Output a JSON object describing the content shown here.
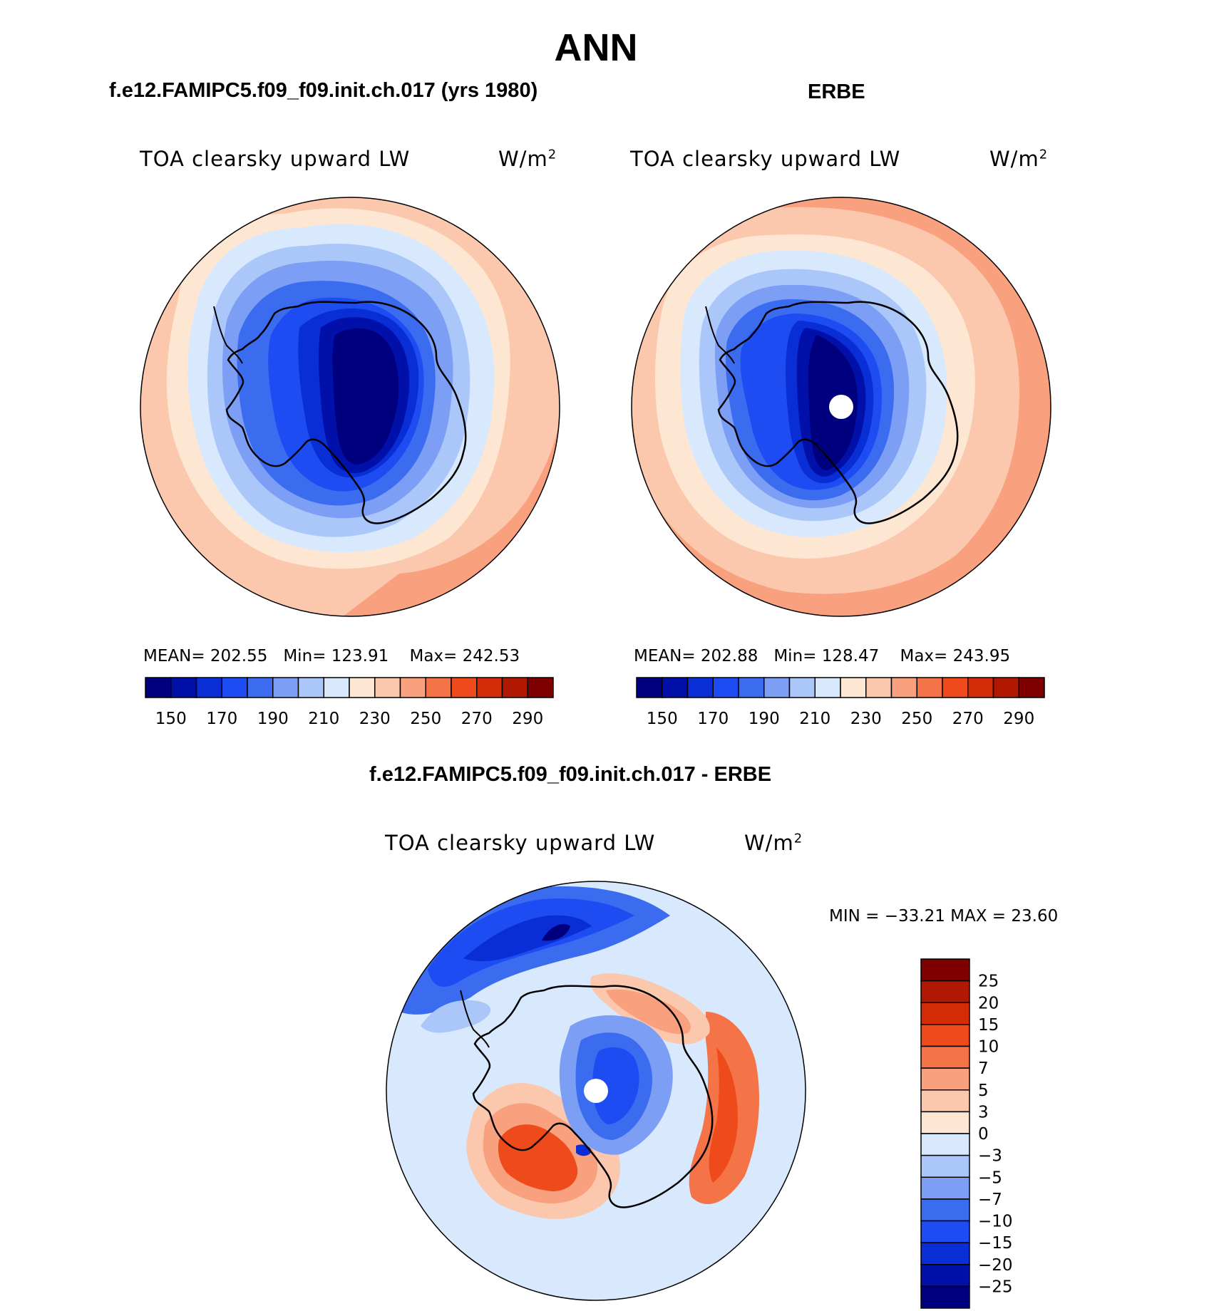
{
  "season": "ANN",
  "panels": {
    "model": {
      "title": "f.e12.FAMIPC5.f09_f09.init.ch.017 (yrs 1980)",
      "variable": "TOA clearsky upward LW",
      "units": "W/m",
      "units_sup": "2",
      "stats": {
        "mean_label": "MEAN=",
        "mean": "202.55",
        "min_label": "Min=",
        "min": "123.91",
        "max_label": "Max=",
        "max": "242.53"
      }
    },
    "obs": {
      "title": "ERBE",
      "variable": "TOA clearsky upward LW",
      "units": "W/m",
      "units_sup": "2",
      "stats": {
        "mean_label": "MEAN=",
        "mean": "202.88",
        "min_label": "Min=",
        "min": "128.47",
        "max_label": "Max=",
        "max": "243.95"
      }
    },
    "diff": {
      "title": "f.e12.FAMIPC5.f09_f09.init.ch.017 - ERBE",
      "variable": "TOA clearsky upward LW",
      "units": "W/m",
      "units_sup": "2",
      "stats": "MIN = −33.21 MAX =  23.60"
    }
  },
  "colorbar_abs": {
    "tick_labels": [
      "150",
      "170",
      "190",
      "210",
      "230",
      "250",
      "270",
      "290"
    ],
    "colors": [
      "#00007f",
      "#0010a8",
      "#0a2ed6",
      "#1d4cf2",
      "#3b6cf0",
      "#7c9ef5",
      "#abc7fa",
      "#d9e9fd",
      "#fde6d2",
      "#fbc8ae",
      "#f9a07e",
      "#f47448",
      "#ef4a1c",
      "#d42c09",
      "#b01802",
      "#7f0000"
    ]
  },
  "colorbar_diff": {
    "tick_labels": [
      "25",
      "20",
      "15",
      "10",
      "7",
      "5",
      "3",
      "0",
      "−3",
      "−5",
      "−7",
      "−10",
      "−15",
      "−20",
      "−25"
    ],
    "colors": [
      "#7f0000",
      "#b01802",
      "#d42c09",
      "#ef4a1c",
      "#f47448",
      "#f9a07e",
      "#fbc8ae",
      "#fde6d2",
      "#d9e9fd",
      "#abc7fa",
      "#7c9ef5",
      "#3b6cf0",
      "#1d4cf2",
      "#0a2ed6",
      "#0010a8",
      "#00007f"
    ]
  },
  "palette": {
    "land_outline": "#000000",
    "missing": "#ffffff"
  }
}
